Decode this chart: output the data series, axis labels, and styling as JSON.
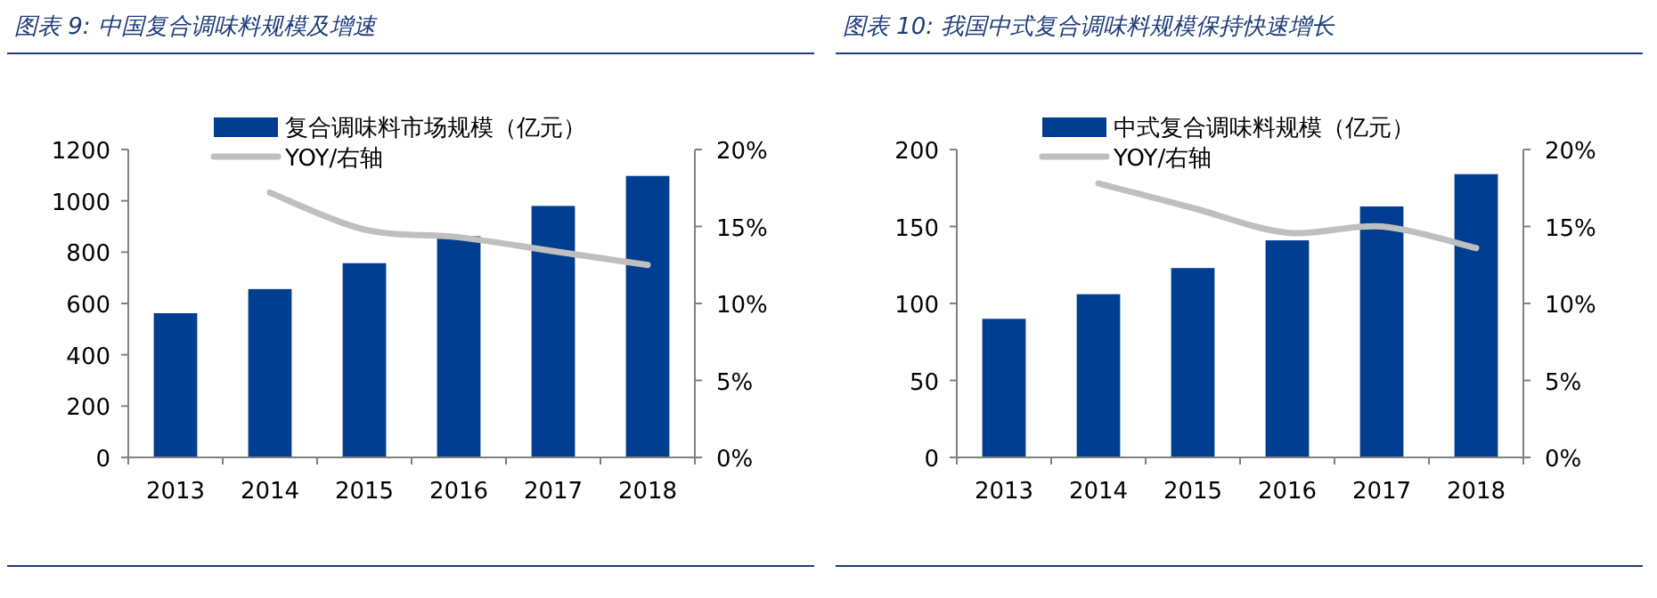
{
  "chart_data": [
    {
      "type": "bar",
      "title": "图表 9:  中国复合调味料规模及增速",
      "categories": [
        "2013",
        "2014",
        "2015",
        "2016",
        "2017",
        "2018"
      ],
      "series": [
        {
          "name": "复合调味料市场规模（亿元）",
          "color": "#003e92",
          "values": [
            562,
            656,
            757,
            862,
            980,
            1097
          ]
        },
        {
          "name": "YOY/右轴",
          "type": "line",
          "axis": "y2",
          "color": "#bfbfbf",
          "values": [
            null,
            17.2,
            14.8,
            14.3,
            13.4,
            12.5
          ]
        }
      ],
      "ylim": [
        0,
        1200
      ],
      "yticks": [
        0,
        200,
        400,
        600,
        800,
        1000,
        1200
      ],
      "y2lim": [
        0,
        20
      ],
      "y2ticks": [
        {
          "value": 0,
          "label": "0%"
        },
        {
          "value": 5,
          "label": "5%"
        },
        {
          "value": 10,
          "label": "10%"
        },
        {
          "value": 15,
          "label": "15%"
        },
        {
          "value": 20,
          "label": "20%"
        }
      ],
      "legend": "top",
      "grid": false
    },
    {
      "type": "bar",
      "title": "图表 10:  我国中式复合调味料规模保持快速增长",
      "categories": [
        "2013",
        "2014",
        "2015",
        "2016",
        "2017",
        "2018"
      ],
      "series": [
        {
          "name": "中式复合调味料规模（亿元）",
          "color": "#003e92",
          "values": [
            90,
            106,
            123,
            141,
            163,
            184
          ]
        },
        {
          "name": "YOY/右轴",
          "type": "line",
          "axis": "y2",
          "color": "#bfbfbf",
          "values": [
            null,
            17.8,
            16.2,
            14.6,
            15.0,
            13.6
          ]
        }
      ],
      "ylim": [
        0,
        200
      ],
      "yticks": [
        0,
        50,
        100,
        150,
        200
      ],
      "y2lim": [
        0,
        20
      ],
      "y2ticks": [
        {
          "value": 0,
          "label": "0%"
        },
        {
          "value": 5,
          "label": "5%"
        },
        {
          "value": 10,
          "label": "10%"
        },
        {
          "value": 15,
          "label": "15%"
        },
        {
          "value": 20,
          "label": "20%"
        }
      ],
      "legend": "top",
      "grid": false
    }
  ]
}
